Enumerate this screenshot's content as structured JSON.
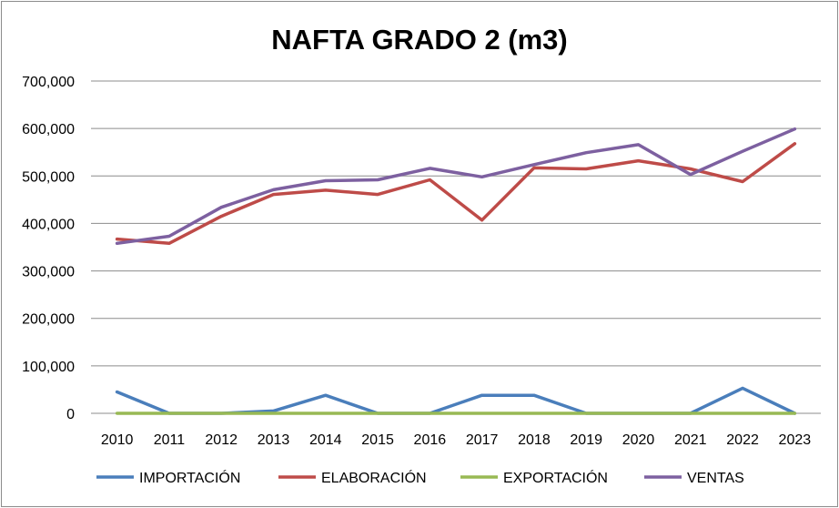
{
  "chart_data": {
    "type": "line",
    "title": "NAFTA GRADO 2 (m3)",
    "xlabel": "",
    "ylabel": "",
    "categories": [
      "2010",
      "2011",
      "2012",
      "2013",
      "2014",
      "2015",
      "2016",
      "2017",
      "2018",
      "2019",
      "2020",
      "2021",
      "2022",
      "2023"
    ],
    "ylim": [
      0,
      700000
    ],
    "yticks": [
      0,
      100000,
      200000,
      300000,
      400000,
      500000,
      600000,
      700000
    ],
    "ytick_labels": [
      "0",
      "100,000",
      "200,000",
      "300,000",
      "400,000",
      "500,000",
      "600,000",
      "700,000"
    ],
    "grid": "horizontal",
    "legend_position": "bottom",
    "series": [
      {
        "name": "IMPORTACIÓN",
        "color": "#4a7ebb",
        "values": [
          45000,
          0,
          0,
          5000,
          38000,
          0,
          0,
          38000,
          38000,
          0,
          0,
          0,
          53000,
          0
        ]
      },
      {
        "name": "ELABORACIÓN",
        "color": "#be4b48",
        "values": [
          367000,
          358000,
          415000,
          461000,
          470000,
          461000,
          492000,
          407000,
          517000,
          515000,
          532000,
          515000,
          488000,
          568000
        ]
      },
      {
        "name": "EXPORTACIÓN",
        "color": "#98b954",
        "values": [
          0,
          0,
          0,
          0,
          0,
          0,
          0,
          0,
          0,
          0,
          0,
          0,
          0,
          0
        ]
      },
      {
        "name": "VENTAS",
        "color": "#7d60a0",
        "values": [
          358000,
          373000,
          434000,
          471000,
          490000,
          492000,
          516000,
          498000,
          524000,
          549000,
          566000,
          503000,
          552000,
          599000
        ]
      }
    ]
  }
}
